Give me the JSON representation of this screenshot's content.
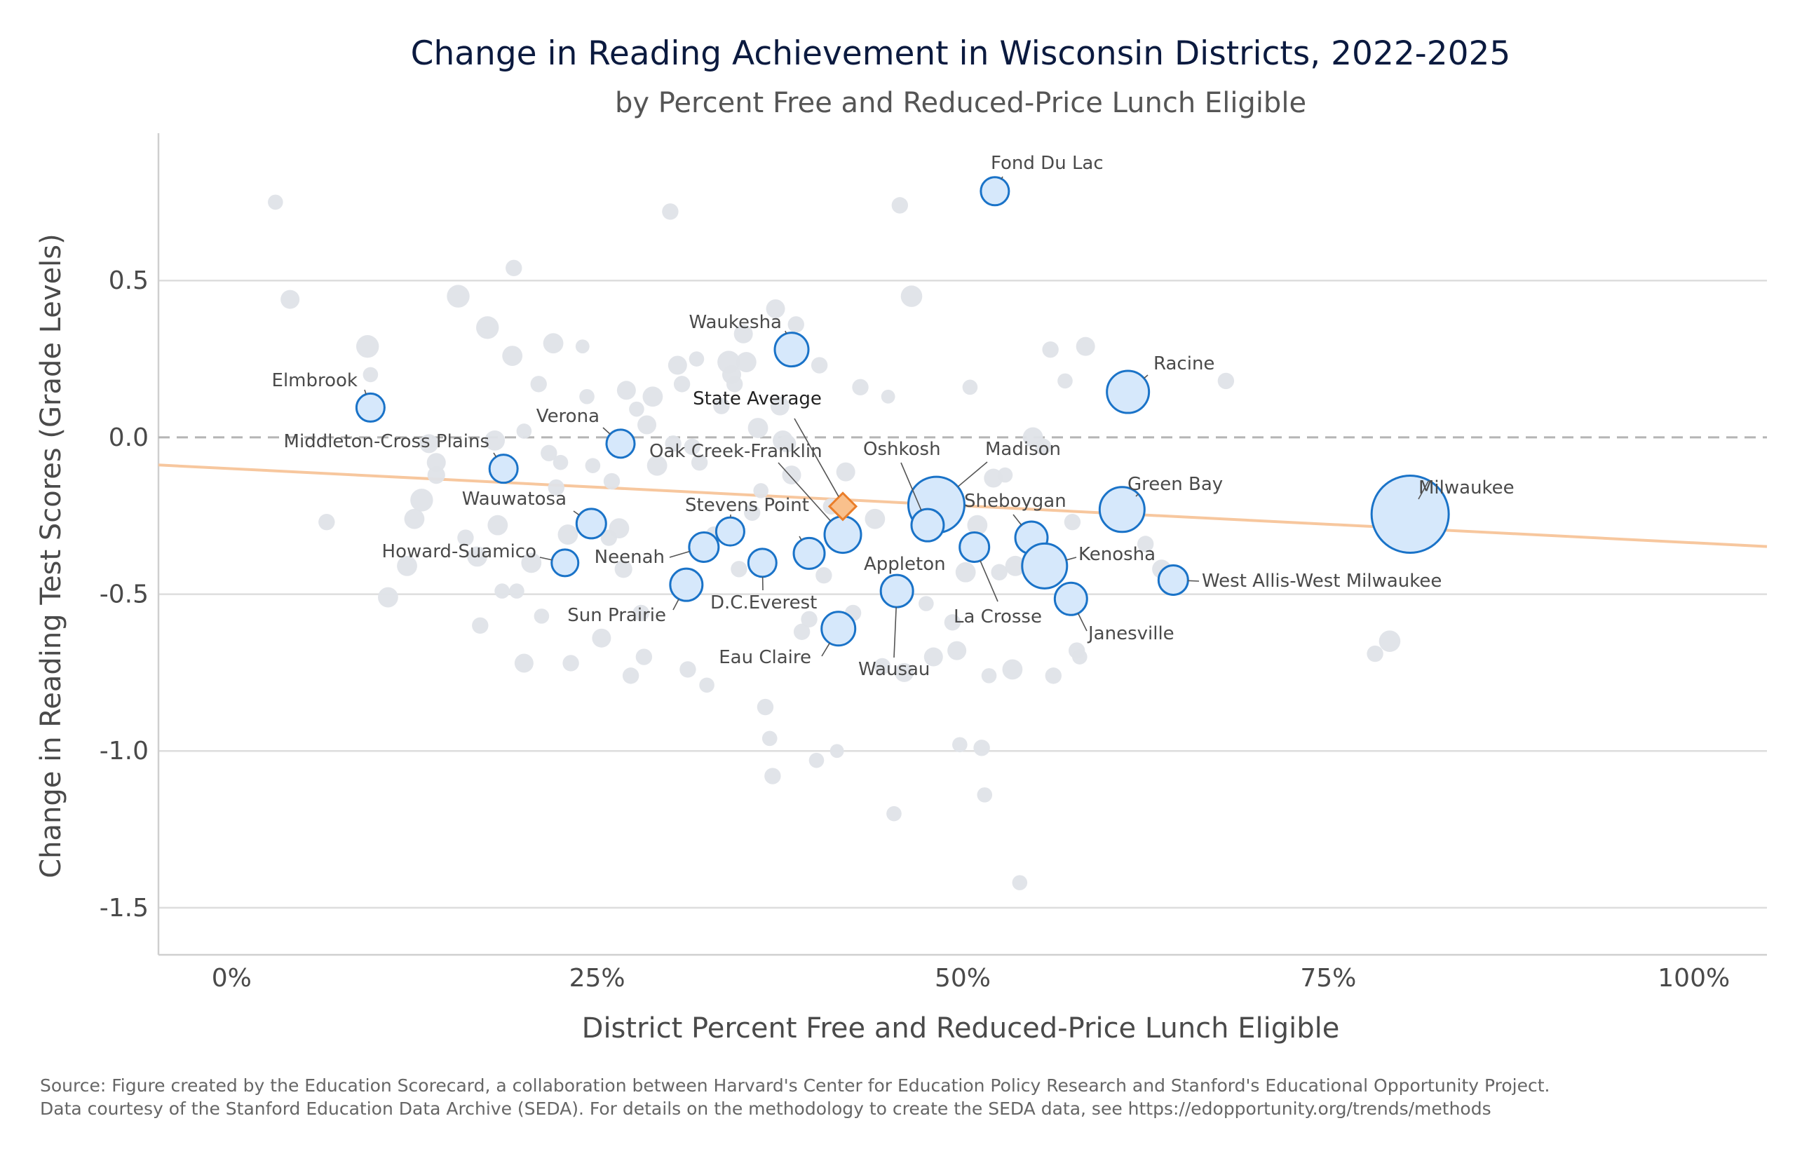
{
  "chart_data": {
    "type": "scatter",
    "title": "Change in Reading Achievement in Wisconsin Districts, 2022-2025",
    "subtitle": "by Percent Free and Reduced-Price Lunch Eligible",
    "xlabel": "District Percent Free and Reduced-Price Lunch Eligible",
    "ylabel": "Change in Reading Test Scores (Grade Levels)",
    "xlim": [
      -0.05,
      1.05
    ],
    "ylim": [
      -1.65,
      0.97
    ],
    "x_ticks": [
      {
        "value": 0,
        "label": "0%"
      },
      {
        "value": 0.25,
        "label": "25%"
      },
      {
        "value": 0.5,
        "label": "50%"
      },
      {
        "value": 0.75,
        "label": "75%"
      },
      {
        "value": 1,
        "label": "100%"
      }
    ],
    "y_ticks": [
      {
        "value": 0.5,
        "label": "0.5"
      },
      {
        "value": 0,
        "label": "0.0"
      },
      {
        "value": -0.5,
        "label": "-0.5"
      },
      {
        "value": -1,
        "label": "-1.0"
      },
      {
        "value": -1.5,
        "label": "-1.5"
      }
    ],
    "grid": "horizontal",
    "reference_line_y": 0,
    "trend_line": {
      "x": [
        -0.05,
        1.05
      ],
      "y": [
        -0.088,
        -0.348
      ]
    },
    "colors": {
      "highlight_fill": "#d6e8fb",
      "highlight_stroke": "#1a73c8",
      "background_point": "#dfe3e8",
      "trend": "#f7c79e",
      "state_fill": "#f9c08c",
      "state_stroke": "#ea7e2a",
      "reference": "#b5b5b5",
      "grid": "#dddddd"
    },
    "state_average": {
      "name": "State Average",
      "x": 0.418,
      "y": -0.22
    },
    "highlighted": [
      {
        "name": "Fond Du Lac",
        "x": 0.522,
        "y": 0.785,
        "size": 2
      },
      {
        "name": "Waukesha",
        "x": 0.383,
        "y": 0.28,
        "size": 2.4
      },
      {
        "name": "Racine",
        "x": 0.613,
        "y": 0.145,
        "size": 3
      },
      {
        "name": "Elmbrook",
        "x": 0.095,
        "y": 0.095,
        "size": 2
      },
      {
        "name": "Verona",
        "x": 0.266,
        "y": -0.02,
        "size": 2
      },
      {
        "name": "Middleton-Cross Plains",
        "x": 0.186,
        "y": -0.1,
        "size": 2
      },
      {
        "name": "Oak Creek-Franklin",
        "x": 0.418,
        "y": -0.31,
        "size": 2.6
      },
      {
        "name": "Madison",
        "x": 0.482,
        "y": -0.215,
        "size": 4
      },
      {
        "name": "Oshkosh",
        "x": 0.476,
        "y": -0.28,
        "size": 2.3
      },
      {
        "name": "Sheboygan",
        "x": 0.547,
        "y": -0.32,
        "size": 2.3
      },
      {
        "name": "Green Bay",
        "x": 0.609,
        "y": -0.23,
        "size": 3.2
      },
      {
        "name": "Milwaukee",
        "x": 0.806,
        "y": -0.245,
        "size": 5.5
      },
      {
        "name": "Wauwatosa",
        "x": 0.246,
        "y": -0.275,
        "size": 2.1
      },
      {
        "name": "Stevens Point",
        "x": 0.341,
        "y": -0.3,
        "size": 2
      },
      {
        "name": "Appleton",
        "x": 0.395,
        "y": -0.37,
        "size": 2.2
      },
      {
        "name": "Howard-Suamico",
        "x": 0.228,
        "y": -0.4,
        "size": 1.9
      },
      {
        "name": "Neenah",
        "x": 0.323,
        "y": -0.35,
        "size": 2.1
      },
      {
        "name": "D.C.Everest",
        "x": 0.363,
        "y": -0.4,
        "size": 2
      },
      {
        "name": "Kenosha",
        "x": 0.556,
        "y": -0.41,
        "size": 3.2
      },
      {
        "name": "La Crosse",
        "x": 0.508,
        "y": -0.35,
        "size": 2.1
      },
      {
        "name": "West Allis-West Milwaukee",
        "x": 0.644,
        "y": -0.455,
        "size": 2.1
      },
      {
        "name": "Sun Prairie",
        "x": 0.311,
        "y": -0.47,
        "size": 2.3
      },
      {
        "name": "Wausau",
        "x": 0.455,
        "y": -0.49,
        "size": 2.3
      },
      {
        "name": "Janesville",
        "x": 0.574,
        "y": -0.515,
        "size": 2.3
      },
      {
        "name": "Eau Claire",
        "x": 0.415,
        "y": -0.61,
        "size": 2.4
      }
    ],
    "background": [
      [
        0.03,
        0.75,
        1.2
      ],
      [
        0.04,
        0.44,
        1.5
      ],
      [
        0.065,
        -0.27,
        1.3
      ],
      [
        0.093,
        0.29,
        1.8
      ],
      [
        0.095,
        0.2,
        1.2
      ],
      [
        0.107,
        -0.51,
        1.6
      ],
      [
        0.12,
        -0.41,
        1.6
      ],
      [
        0.125,
        -0.26,
        1.6
      ],
      [
        0.13,
        -0.2,
        1.8
      ],
      [
        0.135,
        -0.02,
        1.5
      ],
      [
        0.14,
        -0.08,
        1.5
      ],
      [
        0.14,
        -0.12,
        1.4
      ],
      [
        0.155,
        0.45,
        1.8
      ],
      [
        0.16,
        -0.32,
        1.3
      ],
      [
        0.168,
        -0.38,
        1.6
      ],
      [
        0.17,
        -0.6,
        1.3
      ],
      [
        0.175,
        0.35,
        1.8
      ],
      [
        0.18,
        -0.01,
        1.6
      ],
      [
        0.182,
        -0.28,
        1.6
      ],
      [
        0.185,
        -0.49,
        1.2
      ],
      [
        0.192,
        0.26,
        1.6
      ],
      [
        0.193,
        0.54,
        1.3
      ],
      [
        0.195,
        -0.49,
        1.2
      ],
      [
        0.2,
        0.02,
        1.2
      ],
      [
        0.2,
        -0.72,
        1.5
      ],
      [
        0.205,
        -0.4,
        1.6
      ],
      [
        0.21,
        0.17,
        1.3
      ],
      [
        0.212,
        -0.57,
        1.2
      ],
      [
        0.217,
        -0.05,
        1.3
      ],
      [
        0.22,
        0.3,
        1.6
      ],
      [
        0.222,
        -0.16,
        1.3
      ],
      [
        0.225,
        -0.08,
        1.2
      ],
      [
        0.23,
        -0.31,
        1.6
      ],
      [
        0.232,
        -0.72,
        1.3
      ],
      [
        0.24,
        0.29,
        1.1
      ],
      [
        0.243,
        0.13,
        1.2
      ],
      [
        0.247,
        -0.09,
        1.2
      ],
      [
        0.25,
        -0.27,
        1.3
      ],
      [
        0.253,
        -0.64,
        1.5
      ],
      [
        0.258,
        -0.32,
        1.3
      ],
      [
        0.26,
        -0.14,
        1.3
      ],
      [
        0.265,
        -0.29,
        1.6
      ],
      [
        0.268,
        -0.42,
        1.4
      ],
      [
        0.27,
        0.15,
        1.5
      ],
      [
        0.273,
        -0.76,
        1.3
      ],
      [
        0.277,
        0.09,
        1.2
      ],
      [
        0.28,
        -0.56,
        1.3
      ],
      [
        0.282,
        -0.7,
        1.3
      ],
      [
        0.284,
        0.04,
        1.5
      ],
      [
        0.288,
        0.13,
        1.6
      ],
      [
        0.291,
        -0.09,
        1.6
      ],
      [
        0.3,
        0.72,
        1.3
      ],
      [
        0.302,
        -0.02,
        1.3
      ],
      [
        0.305,
        0.23,
        1.5
      ],
      [
        0.308,
        0.17,
        1.3
      ],
      [
        0.312,
        -0.74,
        1.3
      ],
      [
        0.315,
        -0.03,
        1.3
      ],
      [
        0.318,
        0.25,
        1.2
      ],
      [
        0.32,
        -0.08,
        1.3
      ],
      [
        0.325,
        -0.79,
        1.2
      ],
      [
        0.33,
        -0.31,
        1.3
      ],
      [
        0.335,
        0.1,
        1.3
      ],
      [
        0.34,
        0.24,
        1.8
      ],
      [
        0.342,
        0.2,
        1.5
      ],
      [
        0.344,
        0.17,
        1.3
      ],
      [
        0.347,
        -0.42,
        1.3
      ],
      [
        0.35,
        0.33,
        1.5
      ],
      [
        0.352,
        0.24,
        1.6
      ],
      [
        0.356,
        -0.24,
        1.3
      ],
      [
        0.36,
        0.03,
        1.6
      ],
      [
        0.362,
        -0.17,
        1.2
      ],
      [
        0.365,
        -0.86,
        1.3
      ],
      [
        0.368,
        -0.96,
        1.2
      ],
      [
        0.37,
        -1.08,
        1.3
      ],
      [
        0.372,
        0.41,
        1.5
      ],
      [
        0.375,
        0.1,
        1.5
      ],
      [
        0.377,
        -0.01,
        1.6
      ],
      [
        0.38,
        -0.02,
        1.4
      ],
      [
        0.383,
        -0.12,
        1.5
      ],
      [
        0.386,
        0.36,
        1.3
      ],
      [
        0.39,
        -0.62,
        1.3
      ],
      [
        0.395,
        -0.58,
        1.3
      ],
      [
        0.4,
        -1.03,
        1.2
      ],
      [
        0.402,
        0.23,
        1.3
      ],
      [
        0.405,
        -0.44,
        1.3
      ],
      [
        0.41,
        -0.22,
        1.3
      ],
      [
        0.414,
        -1.0,
        1.1
      ],
      [
        0.42,
        -0.11,
        1.5
      ],
      [
        0.425,
        -0.56,
        1.3
      ],
      [
        0.43,
        0.16,
        1.3
      ],
      [
        0.44,
        -0.26,
        1.6
      ],
      [
        0.445,
        -0.73,
        1.3
      ],
      [
        0.449,
        0.13,
        1.1
      ],
      [
        0.453,
        -1.2,
        1.2
      ],
      [
        0.457,
        0.74,
        1.3
      ],
      [
        0.46,
        -0.75,
        1.5
      ],
      [
        0.465,
        0.45,
        1.7
      ],
      [
        0.47,
        -0.2,
        1.3
      ],
      [
        0.475,
        -0.53,
        1.2
      ],
      [
        0.48,
        -0.7,
        1.5
      ],
      [
        0.487,
        -0.27,
        1.3
      ],
      [
        0.493,
        -0.59,
        1.3
      ],
      [
        0.496,
        -0.68,
        1.5
      ],
      [
        0.498,
        -0.98,
        1.2
      ],
      [
        0.502,
        -0.43,
        1.6
      ],
      [
        0.505,
        0.16,
        1.2
      ],
      [
        0.51,
        -0.28,
        1.6
      ],
      [
        0.513,
        -0.99,
        1.3
      ],
      [
        0.515,
        -1.14,
        1.2
      ],
      [
        0.518,
        -0.76,
        1.2
      ],
      [
        0.521,
        -0.13,
        1.5
      ],
      [
        0.525,
        -0.43,
        1.3
      ],
      [
        0.529,
        -0.12,
        1.2
      ],
      [
        0.534,
        -0.74,
        1.6
      ],
      [
        0.536,
        -0.41,
        1.6
      ],
      [
        0.539,
        -1.42,
        1.2
      ],
      [
        0.548,
        0.0,
        1.6
      ],
      [
        0.555,
        -0.03,
        1.3
      ],
      [
        0.56,
        0.28,
        1.3
      ],
      [
        0.562,
        -0.76,
        1.3
      ],
      [
        0.57,
        0.18,
        1.2
      ],
      [
        0.575,
        -0.27,
        1.3
      ],
      [
        0.578,
        -0.68,
        1.3
      ],
      [
        0.58,
        -0.7,
        1.2
      ],
      [
        0.584,
        0.29,
        1.5
      ],
      [
        0.625,
        -0.34,
        1.3
      ],
      [
        0.636,
        -0.42,
        1.5
      ],
      [
        0.68,
        0.18,
        1.3
      ],
      [
        0.782,
        -0.69,
        1.3
      ],
      [
        0.792,
        -0.65,
        1.7
      ]
    ]
  },
  "source_note": {
    "line1": "Source: Figure created by the Education Scorecard, a collaboration between Harvard's Center for Education Policy Research and Stanford's Educational Opportunity Project.",
    "line2": "Data courtesy of the Stanford Education Data Archive (SEDA). For details on the methodology to create the SEDA data, see https://edopportunity.org/trends/methods"
  }
}
